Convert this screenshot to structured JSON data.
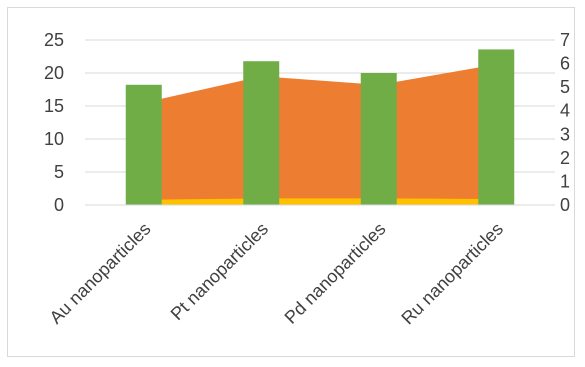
{
  "chart_data": {
    "type": "bar",
    "categories": [
      "Au nanoparticles",
      "Pt nanoparticles",
      "Pd nanoparticles",
      "Ru nanoparticles"
    ],
    "series": [
      {
        "kind": "area",
        "axis": "left",
        "color": "#ED7D31",
        "values": [
          15.5,
          19.5,
          18.2,
          21.3
        ]
      },
      {
        "kind": "area",
        "axis": "left",
        "color": "#FFC000",
        "values": [
          0.8,
          1.0,
          1.0,
          0.9
        ]
      },
      {
        "kind": "bar",
        "axis": "right",
        "color": "#70AD47",
        "values": [
          5.1,
          6.1,
          5.6,
          6.6
        ]
      }
    ],
    "left_axis": {
      "ylim": [
        0,
        25
      ],
      "ticks": [
        "25",
        "20",
        "15",
        "10",
        "5",
        "0"
      ]
    },
    "right_axis": {
      "ylim": [
        0,
        7
      ],
      "ticks": [
        "7",
        "6",
        "5",
        "4",
        "3",
        "2",
        "1",
        "0"
      ]
    },
    "grid": true
  }
}
